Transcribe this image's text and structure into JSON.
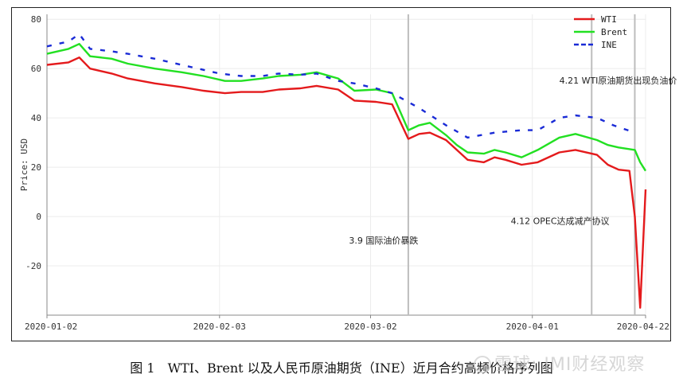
{
  "chart_data": {
    "type": "line",
    "title": "",
    "xlabel": "",
    "ylabel": "Price: USD",
    "ylim": [
      -40,
      82
    ],
    "yticks": [
      80,
      60,
      40,
      20,
      0,
      -20
    ],
    "xlim": [
      "2020-01-02",
      "2020-04-22"
    ],
    "xticks": [
      "2020-01-02",
      "2020-02-03",
      "2020-03-02",
      "2020-04-01",
      "2020-04-22"
    ],
    "grid": true,
    "legend": "top-right",
    "series": [
      {
        "name": "WTI",
        "color": "#e41a1c",
        "style": "solid",
        "x": [
          "2020-01-02",
          "2020-01-06",
          "2020-01-08",
          "2020-01-10",
          "2020-01-14",
          "2020-01-17",
          "2020-01-22",
          "2020-01-27",
          "2020-01-31",
          "2020-02-04",
          "2020-02-07",
          "2020-02-11",
          "2020-02-14",
          "2020-02-18",
          "2020-02-21",
          "2020-02-25",
          "2020-02-28",
          "2020-03-03",
          "2020-03-06",
          "2020-03-09",
          "2020-03-11",
          "2020-03-13",
          "2020-03-16",
          "2020-03-18",
          "2020-03-20",
          "2020-03-23",
          "2020-03-25",
          "2020-03-27",
          "2020-03-30",
          "2020-04-02",
          "2020-04-06",
          "2020-04-09",
          "2020-04-13",
          "2020-04-15",
          "2020-04-17",
          "2020-04-19",
          "2020-04-20",
          "2020-04-21",
          "2020-04-22"
        ],
        "values": [
          61.5,
          62.5,
          64.5,
          60,
          58,
          56,
          54,
          52.5,
          51,
          50,
          50.5,
          50.5,
          51.5,
          52,
          53,
          51.5,
          47,
          46.5,
          45.5,
          31.5,
          33.5,
          34,
          31,
          27,
          23,
          22,
          24,
          23,
          21,
          22,
          26,
          27,
          25,
          21,
          19,
          18.5,
          0,
          -37,
          11
        ]
      },
      {
        "name": "Brent",
        "color": "#22e022",
        "style": "solid",
        "x": [
          "2020-01-02",
          "2020-01-06",
          "2020-01-08",
          "2020-01-10",
          "2020-01-14",
          "2020-01-17",
          "2020-01-22",
          "2020-01-27",
          "2020-01-31",
          "2020-02-04",
          "2020-02-07",
          "2020-02-11",
          "2020-02-14",
          "2020-02-18",
          "2020-02-21",
          "2020-02-25",
          "2020-02-28",
          "2020-03-03",
          "2020-03-06",
          "2020-03-09",
          "2020-03-11",
          "2020-03-13",
          "2020-03-16",
          "2020-03-18",
          "2020-03-20",
          "2020-03-23",
          "2020-03-25",
          "2020-03-27",
          "2020-03-30",
          "2020-04-02",
          "2020-04-06",
          "2020-04-09",
          "2020-04-13",
          "2020-04-15",
          "2020-04-17",
          "2020-04-20",
          "2020-04-21",
          "2020-04-22"
        ],
        "values": [
          66,
          68,
          70,
          65,
          64,
          62,
          60,
          58.5,
          57,
          55,
          55,
          56,
          57,
          57.5,
          58.5,
          56,
          51,
          51.5,
          50,
          35,
          37,
          38,
          33,
          29,
          26,
          25.5,
          27,
          26,
          24,
          27,
          32,
          33.5,
          31,
          29,
          28,
          27,
          22,
          18.5
        ]
      },
      {
        "name": "INE",
        "color": "#1a2bd6",
        "style": "dashed",
        "x": [
          "2020-01-02",
          "2020-01-06",
          "2020-01-08",
          "2020-01-10",
          "2020-01-14",
          "2020-01-17",
          "2020-01-22",
          "2020-02-03",
          "2020-02-07",
          "2020-02-11",
          "2020-02-14",
          "2020-02-18",
          "2020-02-21",
          "2020-02-25",
          "2020-02-28",
          "2020-03-03",
          "2020-03-06",
          "2020-03-11",
          "2020-03-16",
          "2020-03-20",
          "2020-03-25",
          "2020-03-30",
          "2020-04-02",
          "2020-04-06",
          "2020-04-09",
          "2020-04-13",
          "2020-04-16",
          "2020-04-20"
        ],
        "values": [
          69,
          71,
          74,
          68,
          67,
          66,
          64,
          58,
          57,
          57,
          58,
          57.5,
          58,
          55,
          54,
          52,
          50,
          44,
          37,
          32,
          34,
          35,
          35,
          40,
          41,
          40,
          37,
          34
        ]
      }
    ],
    "vlines": [
      "2020-03-09",
      "2020-04-12",
      "2020-04-20"
    ],
    "annotations": [
      {
        "text": "3.9 国际油价暴跌",
        "x": "2020-02-27",
        "y": -11
      },
      {
        "text": "4.12 OPEC达成减产协议",
        "x": "2020-03-28",
        "y": -3
      },
      {
        "text": "4.21 WTI原油期货出现负油价",
        "x": "2020-04-06",
        "y": 54
      }
    ]
  },
  "caption": "图 1　WTI、Brent 以及人民币原油期货（INE）近月合约高频价格序列图",
  "watermark": "雪球: IMI财经观察"
}
